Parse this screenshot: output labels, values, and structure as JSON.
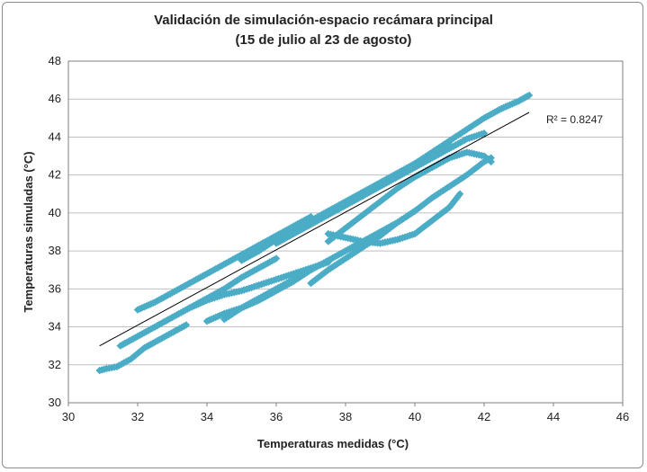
{
  "chart_data": {
    "type": "scatter",
    "title": "Validación de simulación-espacio recámara principal",
    "subtitle": "(15 de julio al 23 de agosto)",
    "xlabel": "Temperaturas medidas (°C)",
    "ylabel": "Temperaturas simuladas (°C)",
    "xlim": [
      30,
      46
    ],
    "ylim": [
      30,
      48
    ],
    "xticks": [
      "30",
      "32",
      "34",
      "36",
      "38",
      "40",
      "42",
      "44",
      "46"
    ],
    "yticks": [
      "30",
      "32",
      "34",
      "36",
      "38",
      "40",
      "42",
      "44",
      "46",
      "48"
    ],
    "grid": "horizontal",
    "marker_color": "#4bacc6",
    "trendline_color": "#000000",
    "r2_label": "R² = 0.8247",
    "trendline": {
      "x": [
        30.9,
        43.3
      ],
      "y": [
        33.0,
        45.3
      ]
    },
    "clusters": [
      {
        "x": [
          30.9,
          31.1,
          31.4,
          31.6,
          31.8,
          32.0,
          32.2,
          32.5,
          32.9,
          33.4
        ],
        "y": [
          31.7,
          31.8,
          31.9,
          32.1,
          32.3,
          32.6,
          32.9,
          33.2,
          33.6,
          34.1
        ]
      },
      {
        "x": [
          31.5,
          32.0,
          32.5,
          33.0,
          33.5,
          34.0,
          34.5,
          35.0,
          35.5,
          36.0
        ],
        "y": [
          33.0,
          33.5,
          34.0,
          34.5,
          35.0,
          35.5,
          36.0,
          36.6,
          37.1,
          37.6
        ]
      },
      {
        "x": [
          32.0,
          32.5,
          33.0,
          33.5,
          34.0,
          34.5,
          35.0,
          35.5,
          36.0,
          36.5,
          37.0
        ],
        "y": [
          34.9,
          35.3,
          35.8,
          36.3,
          36.8,
          37.3,
          37.8,
          38.3,
          38.8,
          39.3,
          39.8
        ]
      },
      {
        "x": [
          34.5,
          35.0,
          35.5,
          36.0,
          36.5,
          37.0,
          37.5,
          38.0,
          38.5,
          39.0,
          39.5,
          40.0
        ],
        "y": [
          34.4,
          35.0,
          35.5,
          36.0,
          36.5,
          37.0,
          37.5,
          38.0,
          38.5,
          39.0,
          39.5,
          40.1
        ]
      },
      {
        "x": [
          35.0,
          35.5,
          36.0,
          36.5,
          37.0,
          37.5,
          38.0,
          38.5,
          39.0,
          39.5,
          40.0,
          40.5,
          41.0
        ],
        "y": [
          37.5,
          38.0,
          38.6,
          39.1,
          39.6,
          40.1,
          40.6,
          41.1,
          41.6,
          42.1,
          42.6,
          43.1,
          43.6
        ]
      },
      {
        "x": [
          36.0,
          36.5,
          37.0,
          37.5,
          38.0,
          38.5,
          39.0,
          39.5,
          40.0,
          40.5,
          41.0,
          41.5,
          42.0
        ],
        "y": [
          38.4,
          38.9,
          39.4,
          39.9,
          40.4,
          40.9,
          41.4,
          41.9,
          42.4,
          42.9,
          43.4,
          43.9,
          44.2
        ]
      },
      {
        "x": [
          38.5,
          39.0,
          39.5,
          40.0,
          40.5,
          41.0,
          41.5,
          42.0,
          42.5,
          43.0,
          43.3
        ],
        "y": [
          40.9,
          41.5,
          42.0,
          42.6,
          43.2,
          43.8,
          44.4,
          45.0,
          45.5,
          45.9,
          46.2
        ]
      },
      {
        "x": [
          37.0,
          37.5,
          38.0,
          38.5,
          39.0,
          39.5,
          40.0,
          40.5,
          41.0,
          41.5,
          42.0,
          42.2
        ],
        "y": [
          36.3,
          37.0,
          37.6,
          38.2,
          38.8,
          39.5,
          40.1,
          40.8,
          41.4,
          42.0,
          42.7,
          42.9
        ]
      },
      {
        "x": [
          37.5,
          38.0,
          38.5,
          39.0,
          39.5,
          40.0,
          40.5,
          41.0,
          41.5,
          42.0,
          42.2
        ],
        "y": [
          38.5,
          39.2,
          39.9,
          40.6,
          41.3,
          41.9,
          42.4,
          42.9,
          43.2,
          43.0,
          42.7
        ]
      },
      {
        "x": [
          37.5,
          38.0,
          38.5,
          39.0,
          39.5,
          40.0,
          40.5,
          41.0,
          41.3
        ],
        "y": [
          38.9,
          38.7,
          38.5,
          38.4,
          38.6,
          38.9,
          39.6,
          40.3,
          41.0
        ]
      },
      {
        "x": [
          33.5,
          34.0,
          34.5,
          35.0,
          35.5,
          36.0,
          36.5,
          37.0,
          37.5
        ],
        "y": [
          35.0,
          35.4,
          35.7,
          35.9,
          36.2,
          36.5,
          36.8,
          37.1,
          37.4
        ]
      },
      {
        "x": [
          34.0,
          34.5,
          35.0,
          35.5,
          36.0,
          36.5,
          37.0
        ],
        "y": [
          34.3,
          34.7,
          35.0,
          35.4,
          35.9,
          36.4,
          37.0
        ]
      }
    ]
  }
}
